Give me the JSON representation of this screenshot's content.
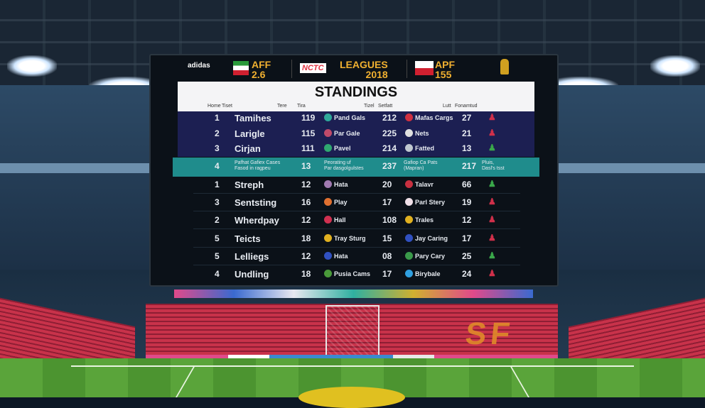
{
  "scoreboard": {
    "brand": "adidas",
    "left_badge": {
      "line1": "AFF",
      "line2": "2.6"
    },
    "logo": "NCTC",
    "league": {
      "line1": "LEAGUES",
      "line2": "2018"
    },
    "right_badge": {
      "line1": "APF",
      "line2": "155"
    },
    "title": "STANDINGS",
    "columns": [
      "Home",
      "Tiset",
      "Tere",
      "Tira",
      "Tizel",
      "Setfatt",
      "Lutt",
      "Fonamtud"
    ],
    "top_rows": [
      {
        "rank": "1",
        "team": "Tamihes",
        "n1": "119",
        "icon1_color": "#2fa89a",
        "name1": "Pand Gals",
        "n2": "212",
        "icon2_color": "#d03040",
        "name2": "Mafas Cargs",
        "n3": "27",
        "badge_color": "#d0304a"
      },
      {
        "rank": "2",
        "team": "Larigle",
        "n1": "115",
        "icon1_color": "#c04a6a",
        "name1": "Par Gale",
        "n2": "225",
        "icon2_color": "#e0e0e0",
        "name2": "Nets",
        "n3": "21",
        "badge_color": "#d0304a"
      },
      {
        "rank": "3",
        "team": "Cirjan",
        "n1": "111",
        "icon1_color": "#2fa870",
        "name1": "Pavel",
        "n2": "214",
        "icon2_color": "#c0c8d0",
        "name2": "Fatted",
        "n3": "13",
        "badge_color": "#3aa84a"
      }
    ],
    "highlight_row": {
      "rank": "4",
      "team_line1": "Pafhat Gafiex Cases",
      "team_line2": "Fasod in ragpeu",
      "n1": "13",
      "name1_line1": "Peorating uf",
      "name1_line2": "Par dasgolgulstes",
      "n2": "237",
      "name2_line1": "Gafiop Ca Pats",
      "name2_line2": "(Mapran)",
      "n3": "217",
      "note_line1": "Pluis,",
      "note_line2": "Dasl's tsst"
    },
    "bottom_rows": [
      {
        "rank": "1",
        "team": "Streph",
        "n1": "12",
        "icon1_color": "#a07ab0",
        "name1": "Hata",
        "n2": "20",
        "icon2_color": "#c83040",
        "name2": "Talavr",
        "n3": "66",
        "badge_color": "#3aa84a"
      },
      {
        "rank": "3",
        "team": "Sentsting",
        "n1": "16",
        "icon1_color": "#e07030",
        "name1": "Play",
        "n2": "17",
        "icon2_color": "#f0e0e8",
        "name2": "Parl Stery",
        "n3": "19",
        "badge_color": "#d0304a"
      },
      {
        "rank": "2",
        "team": "Wherdpay",
        "n1": "12",
        "icon1_color": "#d03050",
        "name1": "Hall",
        "n2": "108",
        "icon2_color": "#e0b020",
        "name2": "Trales",
        "n3": "12",
        "badge_color": "#d0304a"
      },
      {
        "rank": "5",
        "team": "Teicts",
        "n1": "18",
        "icon1_color": "#e0b020",
        "name1": "Tray Sturg",
        "n2": "15",
        "icon2_color": "#3050c0",
        "name2": "Jay Caring",
        "n3": "17",
        "badge_color": "#d0304a"
      },
      {
        "rank": "5",
        "team": "Lelliegs",
        "n1": "12",
        "icon1_color": "#3050c0",
        "name1": "Hata",
        "n2": "08",
        "icon2_color": "#3a9a4a",
        "name2": "Pary Cary",
        "n3": "25",
        "badge_color": "#3aa84a"
      },
      {
        "rank": "4",
        "team": "Undling",
        "n1": "18",
        "icon1_color": "#4a9a3a",
        "name1": "Pusia Cams",
        "n2": "17",
        "icon2_color": "#30a0e0",
        "name2": "Birybale",
        "n3": "24",
        "badge_color": "#d0304a"
      }
    ]
  },
  "stadium": {
    "end_text": "SF"
  },
  "colors": {
    "accent": "#f0b030",
    "navy": "#1c1f52",
    "teal": "#1f8c8c",
    "board": "#0b1118"
  }
}
